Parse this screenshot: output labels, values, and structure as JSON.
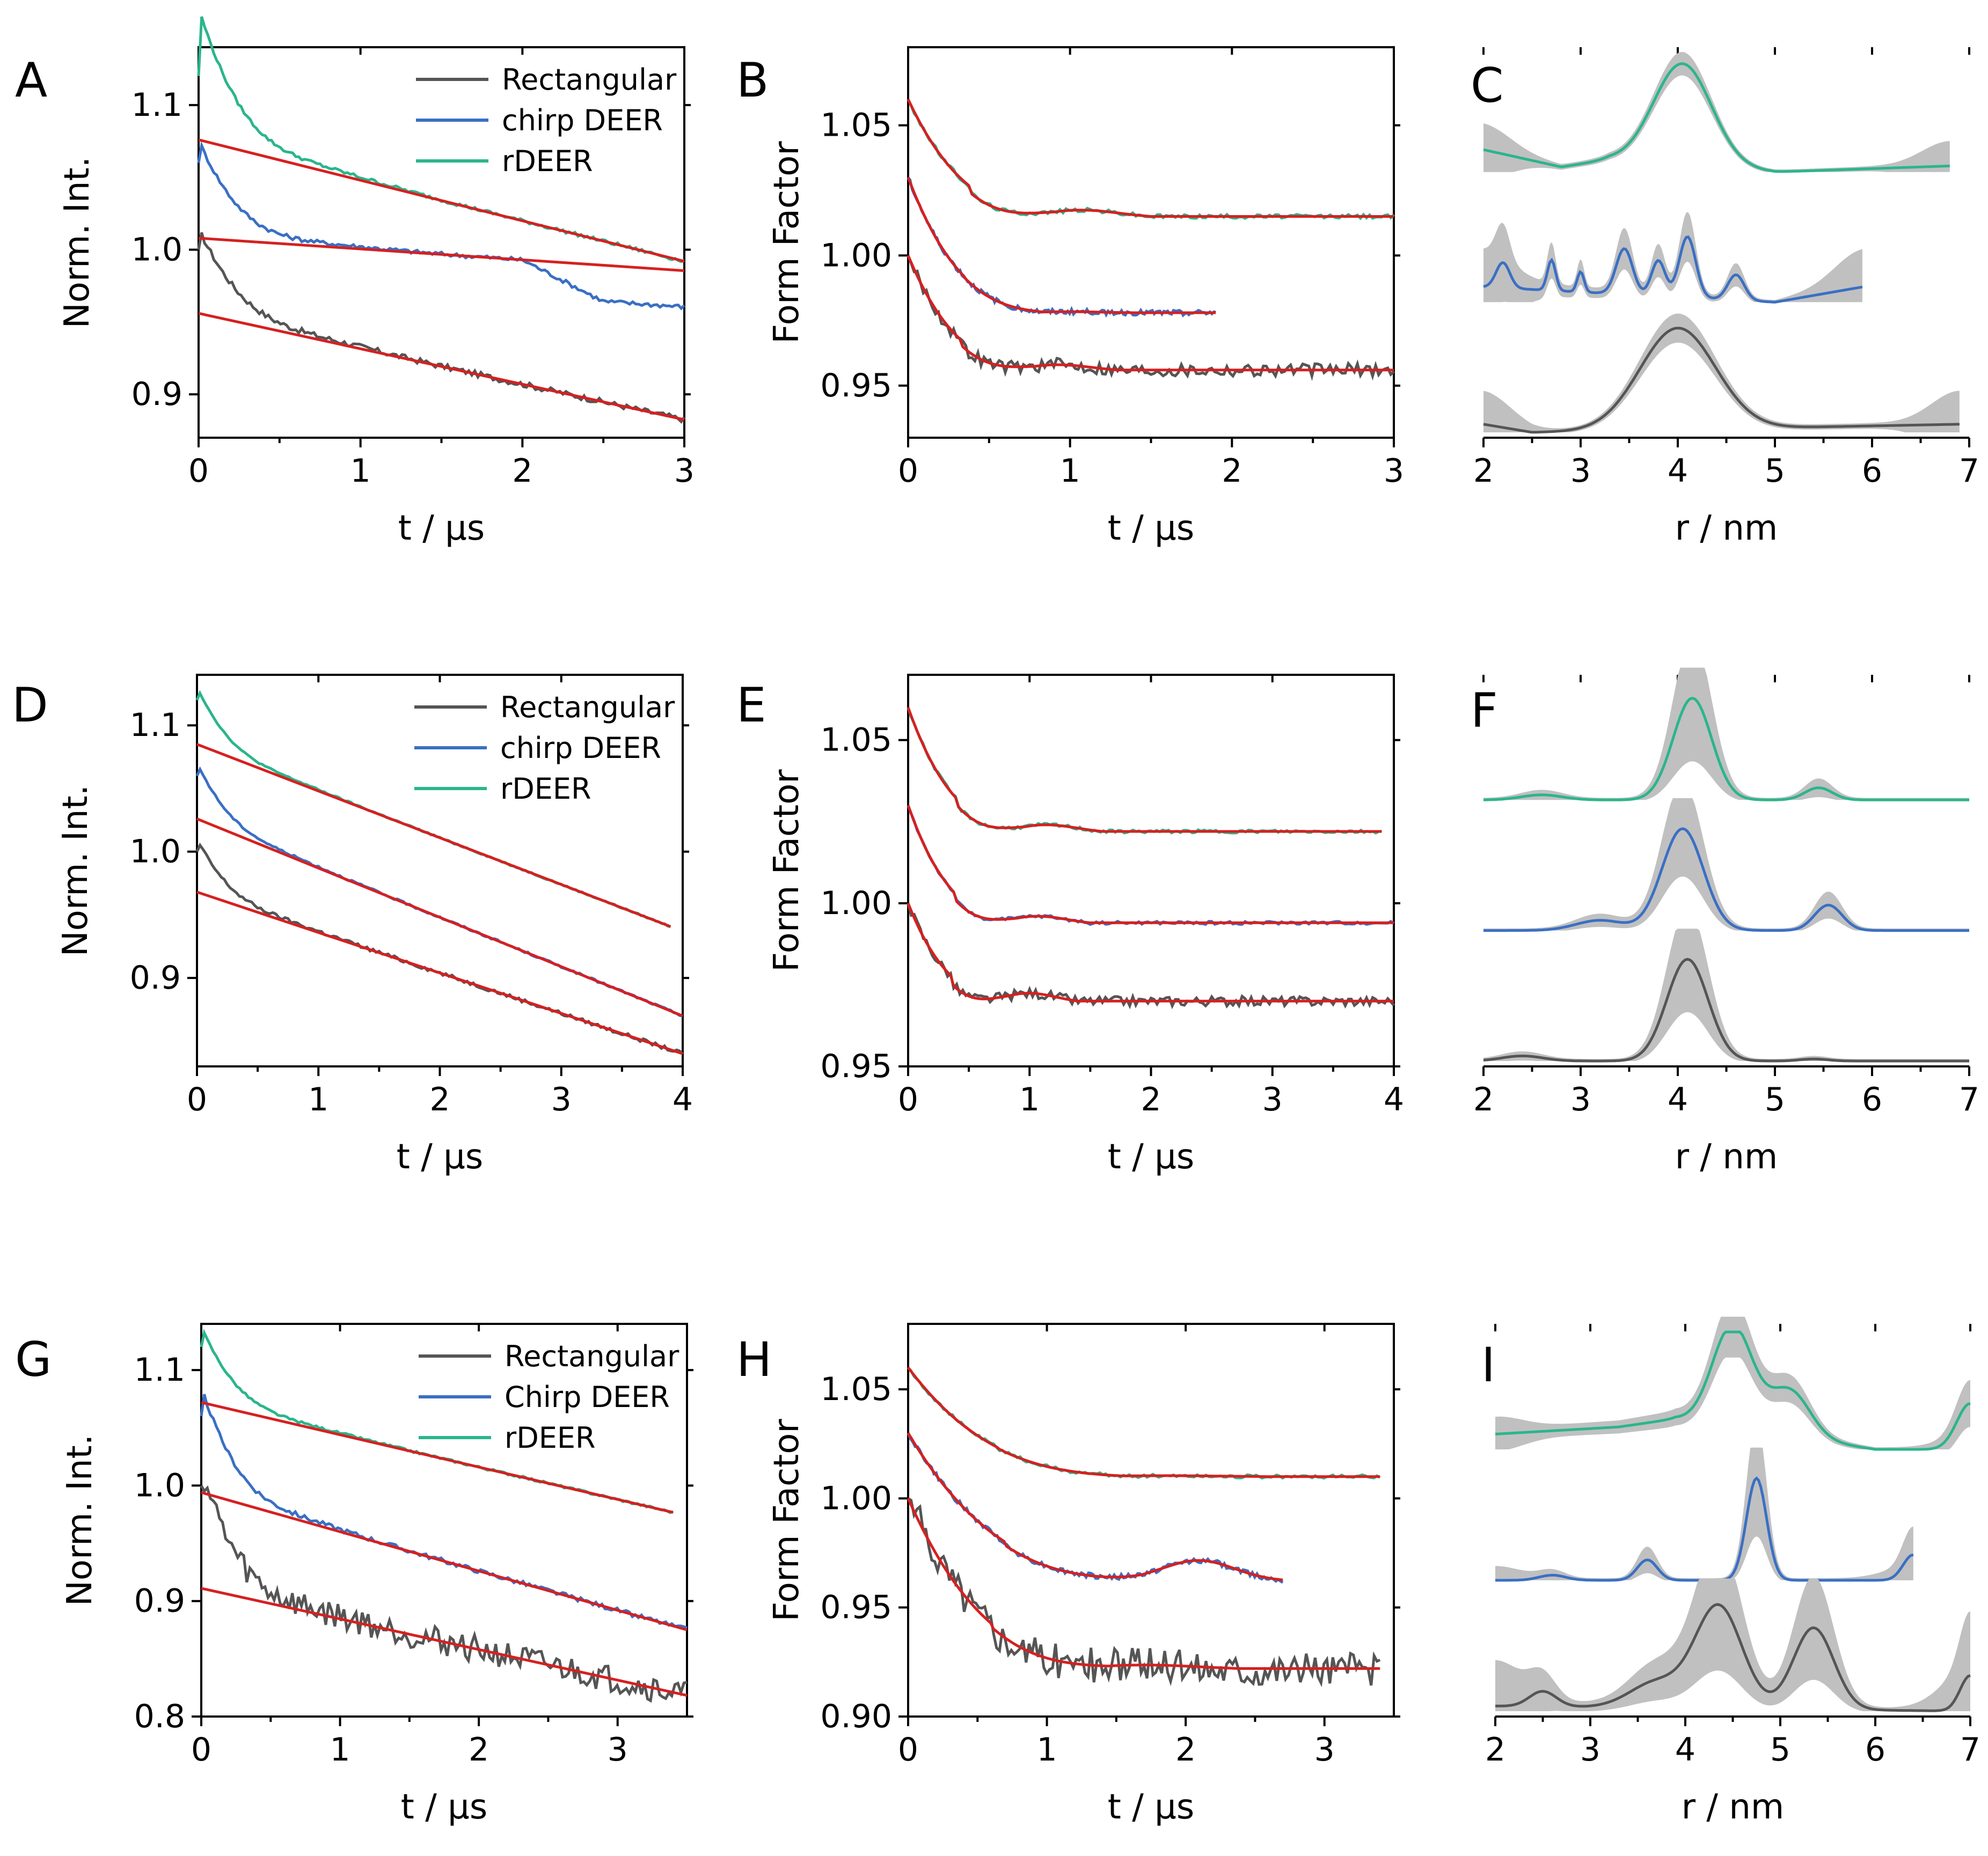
{
  "colors": {
    "rectangular": "#555555",
    "chirp": "#3a6fc4",
    "rdeer": "#2bb58c",
    "fit": "#d62020",
    "band": "#c0c0c0"
  },
  "chart_data": [
    {
      "panel": "A",
      "type": "line",
      "xlabel": "t / µs",
      "ylabel": "Norm. Int.",
      "xlim": [
        0,
        3
      ],
      "ylim": [
        0.87,
        1.14
      ],
      "xticks": [
        "0",
        "1",
        "2",
        "3"
      ],
      "yticks": [
        "0.9",
        "1.0",
        "1.1"
      ],
      "legend": [
        "Rectangular",
        "chirp DEER",
        "rDEER"
      ],
      "trace_params": [
        {
          "name": "Rectangular",
          "tmax": 3.0,
          "offset": 0.0,
          "depth": 0.045,
          "fit_start": 0.956,
          "slope": -0.0245,
          "noise": 0.002
        },
        {
          "name": "chirp DEER",
          "tmax": 3.0,
          "offset": 0.06,
          "depth": 0.052,
          "fit_start": 1.008,
          "slope": -0.0075,
          "noise": 0.0015,
          "tail_drop": 0.025
        },
        {
          "name": "rDEER",
          "tmax": 3.0,
          "offset": 0.12,
          "depth": 0.07,
          "fit_start": 1.076,
          "slope": -0.028,
          "noise": 0.0012
        }
      ]
    },
    {
      "panel": "B",
      "type": "line",
      "xlabel": "t / µs",
      "ylabel": "Form Factor",
      "xlim": [
        0,
        3
      ],
      "ylim": [
        0.93,
        1.08
      ],
      "xticks": [
        "0",
        "1",
        "2",
        "3"
      ],
      "yticks": [
        "0.95",
        "1.00",
        "1.05"
      ],
      "form_factors": [
        {
          "name": "Rectangular",
          "tmax": 3.0,
          "start": 1.0,
          "plateau": 0.956,
          "min": 0.951,
          "tmin": 0.65,
          "noise": 0.0025
        },
        {
          "name": "chirp DEER",
          "tmax": 1.9,
          "start": 1.03,
          "plateau": 0.978,
          "min": 0.977,
          "tmin": 0.7,
          "noise": 0.001
        },
        {
          "name": "rDEER",
          "tmax": 3.0,
          "start": 1.06,
          "plateau": 1.015,
          "min": 1.009,
          "tmin": 0.75,
          "noise": 0.0008
        }
      ]
    },
    {
      "panel": "C",
      "type": "area",
      "xlabel": "r / nm",
      "xlim": [
        2,
        7
      ],
      "xticks": [
        "2",
        "3",
        "4",
        "5",
        "6",
        "7"
      ],
      "distributions": [
        {
          "name": "rDEER",
          "rmax": 6.8,
          "peaks": [
            [
              4.05,
              1.0,
              0.42
            ]
          ],
          "base": [
            [
              2.0,
              0.22
            ],
            [
              2.8,
              0.05
            ],
            [
              3.3,
              0.12
            ],
            [
              5.0,
              0.0
            ],
            [
              6.8,
              0.06
            ]
          ],
          "band": 0.09,
          "band_edge": 0.22
        },
        {
          "name": "chirp DEER",
          "rmax": 5.9,
          "peaks": [
            [
              2.2,
              0.25,
              0.1
            ],
            [
              2.7,
              0.3,
              0.06
            ],
            [
              3.0,
              0.2,
              0.05
            ],
            [
              3.45,
              0.45,
              0.12
            ],
            [
              3.8,
              0.35,
              0.1
            ],
            [
              4.1,
              0.6,
              0.12
            ],
            [
              4.6,
              0.25,
              0.12
            ]
          ],
          "base": [
            [
              2.0,
              0.15
            ],
            [
              5.0,
              0.0
            ],
            [
              5.9,
              0.15
            ]
          ],
          "band": 0.35,
          "band_edge": 0.3
        },
        {
          "name": "Rectangular",
          "rmax": 6.9,
          "peaks": [
            [
              4.0,
              1.0,
              0.55
            ]
          ],
          "base": [
            [
              2.0,
              0.08
            ],
            [
              2.5,
              0.0
            ],
            [
              6.9,
              0.08
            ]
          ],
          "band": 0.12,
          "band_edge": 0.3
        }
      ]
    },
    {
      "panel": "D",
      "type": "line",
      "xlabel": "t / µs",
      "ylabel": "Norm. Int.",
      "xlim": [
        0,
        4
      ],
      "ylim": [
        0.83,
        1.14
      ],
      "xticks": [
        "0",
        "1",
        "2",
        "3",
        "4"
      ],
      "yticks": [
        "0.9",
        "1.0",
        "1.1"
      ],
      "legend": [
        "Rectangular",
        "chirp DEER",
        "rDEER"
      ],
      "trace_params": [
        {
          "name": "Rectangular",
          "tmax": 4.0,
          "offset": 0.0,
          "depth": 0.032,
          "fit_start": 0.968,
          "slope": -0.032,
          "noise": 0.0015
        },
        {
          "name": "chirp DEER",
          "tmax": 4.0,
          "offset": 0.06,
          "depth": 0.034,
          "fit_start": 1.026,
          "slope": -0.039,
          "noise": 0.0008
        },
        {
          "name": "rDEER",
          "tmax": 3.9,
          "offset": 0.12,
          "depth": 0.035,
          "fit_start": 1.085,
          "slope": -0.037,
          "noise": 0.0006
        }
      ]
    },
    {
      "panel": "E",
      "type": "line",
      "xlabel": "t / µs",
      "ylabel": "Form Factor",
      "xlim": [
        0,
        4
      ],
      "ylim": [
        0.95,
        1.07
      ],
      "xticks": [
        "0",
        "1",
        "2",
        "3",
        "4"
      ],
      "yticks": [
        "0.95",
        "1.00",
        "1.05"
      ],
      "form_factors": [
        {
          "name": "Rectangular",
          "tmax": 4.0,
          "start": 1.0,
          "plateau": 0.97,
          "min": 0.964,
          "tmin": 0.7,
          "noise": 0.0015
        },
        {
          "name": "chirp DEER",
          "tmax": 4.0,
          "start": 1.03,
          "plateau": 0.994,
          "min": 0.989,
          "tmin": 0.75,
          "noise": 0.0005
        },
        {
          "name": "rDEER",
          "tmax": 3.9,
          "start": 1.06,
          "plateau": 1.022,
          "min": 1.017,
          "tmin": 0.8,
          "noise": 0.0005
        }
      ]
    },
    {
      "panel": "F",
      "type": "area",
      "xlabel": "r / nm",
      "xlim": [
        2,
        7
      ],
      "xticks": [
        "2",
        "3",
        "4",
        "5",
        "6",
        "7"
      ],
      "distributions": [
        {
          "name": "rDEER",
          "rmax": 7.0,
          "peaks": [
            [
              4.15,
              1.0,
              0.28
            ],
            [
              2.6,
              0.05,
              0.3
            ],
            [
              5.45,
              0.12,
              0.2
            ]
          ],
          "base": [
            [
              2.0,
              0.0
            ],
            [
              7.0,
              0.0
            ]
          ],
          "band": 0.6,
          "band_edge": 0.0
        },
        {
          "name": "chirp DEER",
          "rmax": 7.0,
          "peaks": [
            [
              4.05,
              1.0,
              0.3
            ],
            [
              3.2,
              0.1,
              0.35
            ],
            [
              5.55,
              0.25,
              0.2
            ]
          ],
          "base": [
            [
              2.0,
              0.0
            ],
            [
              7.0,
              0.0
            ]
          ],
          "band": 0.45,
          "band_edge": 0.0
        },
        {
          "name": "Rectangular",
          "rmax": 7.0,
          "peaks": [
            [
              4.1,
              1.0,
              0.3
            ],
            [
              2.4,
              0.05,
              0.3
            ],
            [
              5.4,
              0.02,
              0.2
            ]
          ],
          "base": [
            [
              2.0,
              0.0
            ],
            [
              7.0,
              0.0
            ]
          ],
          "band": 0.5,
          "band_edge": 0.0
        }
      ]
    },
    {
      "panel": "G",
      "type": "line",
      "xlabel": "t / µs",
      "ylabel": "Norm. Int.",
      "xlim": [
        0,
        3.5
      ],
      "ylim": [
        0.8,
        1.14
      ],
      "xticks": [
        "0",
        "1",
        "2",
        "3"
      ],
      "yticks": [
        "0.8",
        "0.9",
        "1.0",
        "1.1"
      ],
      "legend": [
        "Rectangular",
        "Chirp DEER",
        "rDEER"
      ],
      "trace_params": [
        {
          "name": "Rectangular",
          "tmax": 3.5,
          "offset": 0.0,
          "depth": 0.08,
          "fit_start": 0.911,
          "slope": -0.0265,
          "noise": 0.012
        },
        {
          "name": "Chirp DEER",
          "tmax": 3.5,
          "offset": 0.06,
          "depth": 0.07,
          "fit_start": 0.994,
          "slope": -0.034,
          "noise": 0.002
        },
        {
          "name": "rDEER",
          "tmax": 3.4,
          "offset": 0.12,
          "depth": 0.05,
          "fit_start": 1.072,
          "slope": -0.028,
          "noise": 0.001
        }
      ]
    },
    {
      "panel": "H",
      "type": "line",
      "xlabel": "t / µs",
      "ylabel": "Form Factor",
      "xlim": [
        0,
        3.5
      ],
      "ylim": [
        0.9,
        1.08
      ],
      "xticks": [
        "0",
        "1",
        "2",
        "3"
      ],
      "yticks": [
        "0.90",
        "0.95",
        "1.00",
        "1.05"
      ],
      "form_factors": [
        {
          "name": "Rectangular",
          "tmax": 3.4,
          "start": 1.0,
          "plateau": 0.922,
          "min": 0.918,
          "tmin": 1.2,
          "noise": 0.008
        },
        {
          "name": "Chirp DEER",
          "tmax": 2.7,
          "start": 1.03,
          "plateau": 0.962,
          "min": 0.958,
          "tmin": 1.4,
          "noise": 0.0012,
          "bump": [
            2.1,
            0.008
          ]
        },
        {
          "name": "rDEER",
          "tmax": 3.4,
          "start": 1.06,
          "plateau": 1.01,
          "min": 1.009,
          "tmin": 1.3,
          "noise": 0.0008
        }
      ]
    },
    {
      "panel": "I",
      "type": "area",
      "xlabel": "r / nm",
      "xlim": [
        2,
        7
      ],
      "xticks": [
        "2",
        "3",
        "4",
        "5",
        "6",
        "7"
      ],
      "distributions": [
        {
          "name": "rDEER",
          "rmax": 7.0,
          "peaks": [
            [
              4.5,
              1.0,
              0.3
            ],
            [
              5.1,
              0.45,
              0.3
            ],
            [
              7.0,
              0.45,
              0.2
            ]
          ],
          "base": [
            [
              2.0,
              0.15
            ],
            [
              3.3,
              0.22
            ],
            [
              3.9,
              0.3
            ],
            [
              6.0,
              0.0
            ],
            [
              6.5,
              0.0
            ]
          ],
          "band": 0.2,
          "band_edge": 0.12
        },
        {
          "name": "Chirp DEER",
          "rmax": 6.4,
          "peaks": [
            [
              4.75,
              1.0,
              0.15
            ],
            [
              3.6,
              0.2,
              0.15
            ],
            [
              2.6,
              0.05,
              0.2
            ],
            [
              6.4,
              0.25,
              0.15
            ]
          ],
          "base": [
            [
              2.0,
              0.0
            ],
            [
              6.4,
              0.0
            ]
          ],
          "band": 0.55,
          "band_edge": 0.12
        },
        {
          "name": "Rectangular",
          "rmax": 7.0,
          "peaks": [
            [
              2.5,
              0.15,
              0.2
            ],
            [
              4.35,
              1.0,
              0.35
            ],
            [
              5.35,
              0.8,
              0.3
            ],
            [
              3.7,
              0.25,
              0.4
            ],
            [
              7.0,
              0.35,
              0.15
            ]
          ],
          "base": [
            [
              2.0,
              0.05
            ],
            [
              7.0,
              0.0
            ]
          ],
          "band": 0.6,
          "band_edge": 0.4
        }
      ]
    }
  ]
}
